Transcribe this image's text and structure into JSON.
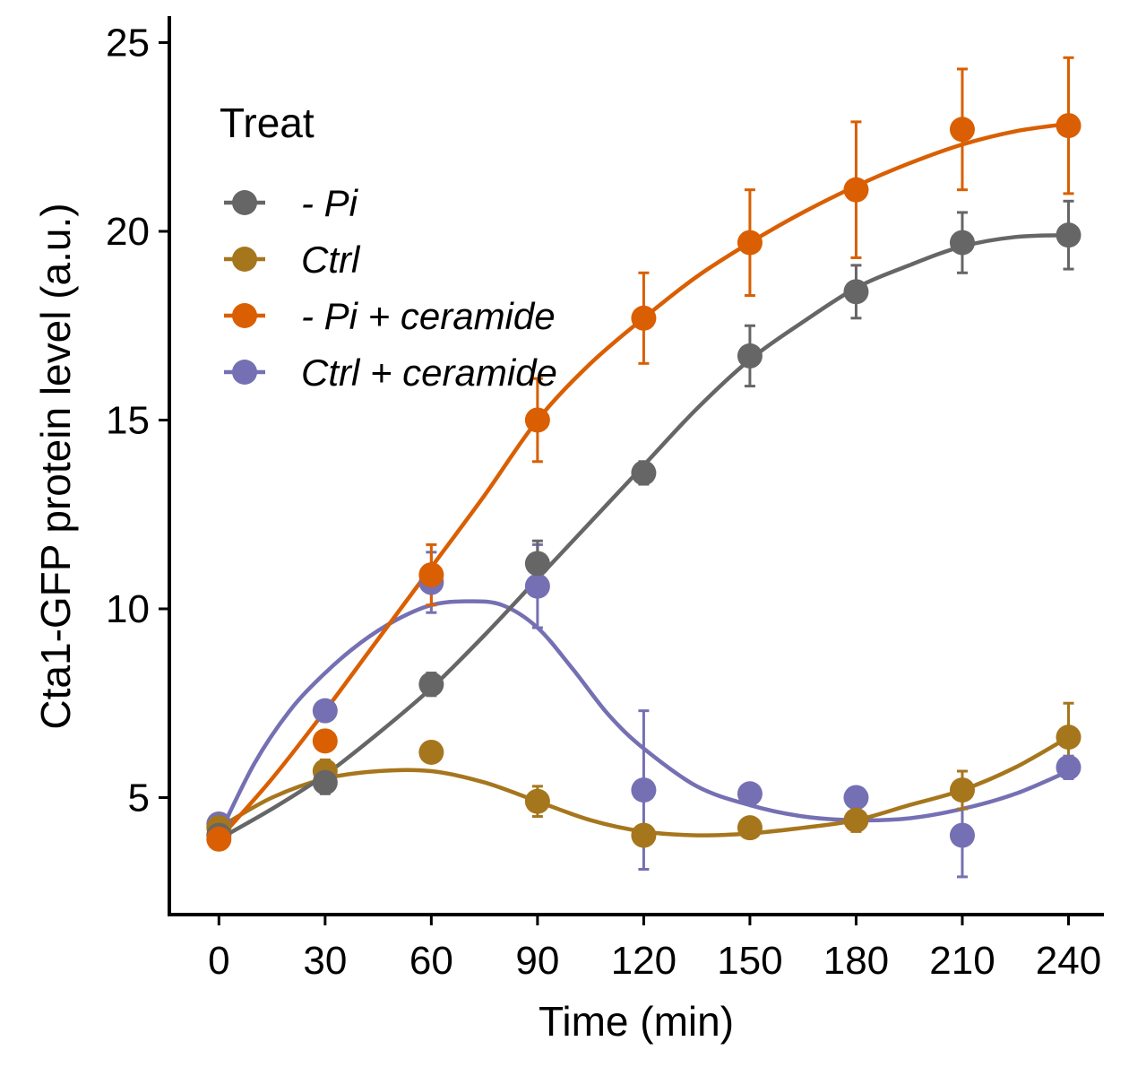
{
  "chart_data": {
    "type": "line",
    "xlabel": "Time (min)",
    "ylabel": "Cta1-GFP protein level (a.u.)",
    "x": [
      0,
      30,
      60,
      90,
      120,
      150,
      180,
      210,
      240
    ],
    "x_ticks": [
      "0",
      "30",
      "60",
      "90",
      "120",
      "150",
      "180",
      "210",
      "240"
    ],
    "y_ticks": [
      "5",
      "10",
      "15",
      "20",
      "25"
    ],
    "xlim": [
      -14,
      250
    ],
    "ylim": [
      1.9,
      25.7
    ],
    "grid": false,
    "legend": {
      "title": "Treat",
      "position": "top-left"
    },
    "series": [
      {
        "name": "- Pi",
        "color": "#666666",
        "values": [
          4.0,
          5.4,
          8.0,
          11.2,
          13.6,
          16.7,
          18.4,
          19.7,
          19.9
        ],
        "error": [
          0.2,
          0.3,
          0.3,
          0.6,
          0.3,
          0.8,
          0.7,
          0.8,
          0.9
        ]
      },
      {
        "name": "Ctrl",
        "color": "#A6761D",
        "values": [
          4.2,
          5.7,
          6.2,
          4.9,
          4.0,
          4.2,
          4.4,
          5.2,
          6.6
        ],
        "error": [
          0.2,
          0.3,
          0.2,
          0.4,
          0.2,
          0.2,
          0.3,
          0.5,
          0.9
        ]
      },
      {
        "name": "- Pi + ceramide",
        "color": "#D95F02",
        "values": [
          3.9,
          6.5,
          10.9,
          15.0,
          17.7,
          19.7,
          21.1,
          22.7,
          22.8
        ],
        "error": [
          0.2,
          0.2,
          0.8,
          1.1,
          1.2,
          1.4,
          1.8,
          1.6,
          1.8
        ]
      },
      {
        "name": "Ctrl + ceramide",
        "color": "#7570B3",
        "values": [
          4.3,
          7.3,
          10.7,
          10.6,
          5.2,
          5.1,
          5.0,
          4.0,
          5.8
        ],
        "error": [
          0.2,
          0.2,
          0.8,
          1.1,
          2.1,
          0.2,
          0.2,
          1.1,
          0.3
        ]
      }
    ],
    "fits": {
      "- Pi": {
        "x": [
          0,
          15,
          30,
          45,
          60,
          75,
          90,
          105,
          120,
          135,
          150,
          165,
          180,
          195,
          210,
          225,
          240
        ],
        "y": [
          3.9,
          4.7,
          5.6,
          6.7,
          7.9,
          9.3,
          10.8,
          12.3,
          13.8,
          15.3,
          16.6,
          17.6,
          18.5,
          19.1,
          19.6,
          19.85,
          19.9
        ]
      },
      "Ctrl": {
        "x": [
          0,
          15,
          30,
          45,
          60,
          75,
          90,
          105,
          120,
          135,
          150,
          165,
          180,
          195,
          210,
          225,
          240
        ],
        "y": [
          4.2,
          5.0,
          5.5,
          5.7,
          5.7,
          5.4,
          4.9,
          4.4,
          4.1,
          4.0,
          4.05,
          4.2,
          4.4,
          4.8,
          5.2,
          5.8,
          6.6
        ]
      },
      "- Pi + ceramide": {
        "x": [
          0,
          15,
          30,
          45,
          60,
          75,
          90,
          105,
          120,
          135,
          150,
          165,
          180,
          195,
          210,
          225,
          240
        ],
        "y": [
          3.9,
          5.5,
          7.3,
          9.2,
          11.1,
          13.0,
          15.0,
          16.5,
          17.7,
          18.8,
          19.7,
          20.5,
          21.2,
          21.8,
          22.3,
          22.65,
          22.85
        ]
      },
      "Ctrl + ceramide": {
        "x": [
          0,
          10,
          20,
          30,
          40,
          50,
          60,
          70,
          80,
          90,
          100,
          110,
          120,
          135,
          150,
          165,
          180,
          195,
          210,
          225,
          240
        ],
        "y": [
          4.0,
          5.9,
          7.3,
          8.3,
          9.1,
          9.7,
          10.1,
          10.2,
          10.1,
          9.5,
          8.4,
          7.2,
          6.3,
          5.3,
          4.8,
          4.5,
          4.4,
          4.45,
          4.7,
          5.1,
          5.7
        ]
      }
    }
  }
}
